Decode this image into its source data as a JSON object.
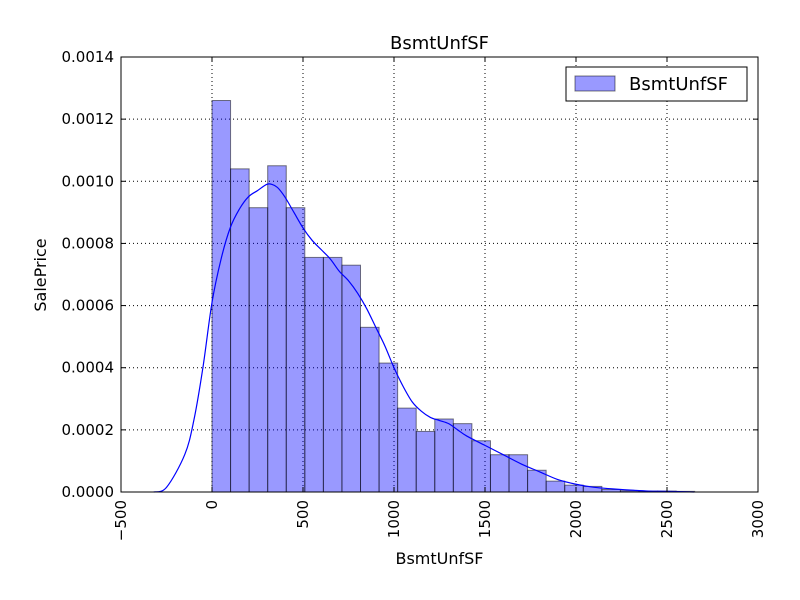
{
  "chart_data": {
    "type": "bar",
    "title": "BsmtUnfSF",
    "xlabel": "BsmtUnfSF",
    "ylabel": "SalePrice",
    "xlim": [
      -500,
      3000
    ],
    "ylim": [
      0,
      0.0014
    ],
    "grid": true,
    "legend": {
      "position": "top-right",
      "entries": [
        "BsmtUnfSF"
      ]
    },
    "x_ticks": [
      "−500",
      "0",
      "500",
      "1000",
      "1500",
      "2000",
      "2500",
      "3000"
    ],
    "y_ticks": [
      "0.0000",
      "0.0002",
      "0.0004",
      "0.0006",
      "0.0008",
      "0.0010",
      "0.0012",
      "0.0014"
    ],
    "histogram": {
      "name": "BsmtUnfSF",
      "color": "#0000ff",
      "bin_edges": [
        0,
        102,
        204,
        306,
        408,
        510,
        612,
        714,
        816,
        918,
        1020,
        1122,
        1224,
        1326,
        1428,
        1530,
        1632,
        1734,
        1836,
        1938,
        2040,
        2142,
        2244,
        2346,
        2448,
        2550,
        2652
      ],
      "values": [
        0.00126,
        0.00104,
        0.000915,
        0.00105,
        0.000915,
        0.000755,
        0.000755,
        0.00073,
        0.00053,
        0.000415,
        0.00027,
        0.000195,
        0.000235,
        0.00022,
        0.000165,
        0.00012,
        0.00012,
        7e-05,
        3.5e-05,
        2.2e-05,
        1.8e-05,
        8e-06,
        4e-06,
        3e-06,
        3e-06,
        2e-06
      ]
    },
    "kde": {
      "color": "#0000ff",
      "x": [
        -320,
        -250,
        -150,
        -100,
        -50,
        0,
        50,
        100,
        150,
        200,
        250,
        300,
        330,
        360,
        400,
        450,
        500,
        550,
        600,
        650,
        700,
        750,
        800,
        850,
        900,
        950,
        1000,
        1050,
        1100,
        1150,
        1200,
        1250,
        1300,
        1350,
        1400,
        1500,
        1600,
        1700,
        1800,
        1900,
        2000,
        2100,
        2200,
        2300,
        2400,
        2500,
        2650
      ],
      "y": [
        0,
        1.5e-05,
        0.00012,
        0.00023,
        0.0004,
        0.00061,
        0.00075,
        0.00085,
        0.00091,
        0.00095,
        0.00097,
        0.00099,
        0.00099,
        0.00098,
        0.00095,
        0.0009,
        0.00085,
        0.00081,
        0.00078,
        0.00075,
        0.00071,
        0.00068,
        0.00064,
        0.00059,
        0.00053,
        0.00047,
        0.0004,
        0.00034,
        0.00029,
        0.00026,
        0.00024,
        0.00023,
        0.00022,
        0.0002,
        0.00018,
        0.00015,
        0.00012,
        9e-05,
        6.5e-05,
        4e-05,
        2.5e-05,
        1.5e-05,
        1e-05,
        6e-06,
        3e-06,
        2e-06,
        0
      ]
    }
  }
}
